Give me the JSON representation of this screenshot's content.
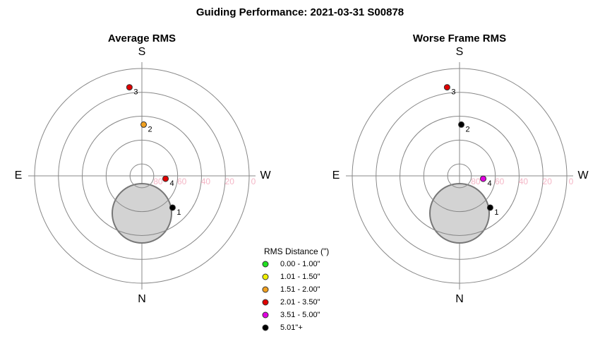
{
  "title": "Guiding Performance: 2021-03-31 S00878",
  "chart_data": [
    {
      "type": "polar",
      "title": "Average RMS",
      "compass": [
        {
          "label": "S",
          "az": 180
        },
        {
          "label": "W",
          "az": 270
        },
        {
          "label": "N",
          "az": 0
        },
        {
          "label": "E",
          "az": 90
        }
      ],
      "rlim": [
        90,
        0
      ],
      "rticks": [
        80,
        60,
        40,
        20,
        0
      ],
      "points": [
        {
          "label": "1",
          "az": 316,
          "alt": 53,
          "color": "#000000"
        },
        {
          "label": "2",
          "az": 182,
          "alt": 47,
          "color": "#f0a020"
        },
        {
          "label": "3",
          "az": 172,
          "alt": 15,
          "color": "#e00000"
        },
        {
          "label": "4",
          "az": 277,
          "alt": 70,
          "color": "#e00000"
        }
      ]
    },
    {
      "type": "polar",
      "title": "Worse Frame RMS",
      "compass": [
        {
          "label": "S",
          "az": 180
        },
        {
          "label": "W",
          "az": 270
        },
        {
          "label": "N",
          "az": 0
        },
        {
          "label": "E",
          "az": 90
        }
      ],
      "rlim": [
        90,
        0
      ],
      "rticks": [
        80,
        60,
        40,
        20,
        0
      ],
      "points": [
        {
          "label": "1",
          "az": 316,
          "alt": 53,
          "color": "#000000"
        },
        {
          "label": "2",
          "az": 182,
          "alt": 47,
          "color": "#000000"
        },
        {
          "label": "3",
          "az": 172,
          "alt": 15,
          "color": "#e00000"
        },
        {
          "label": "4",
          "az": 277,
          "alt": 70,
          "color": "#e000e0"
        }
      ]
    }
  ],
  "legend": {
    "title": "RMS Distance (\")",
    "items": [
      {
        "label": "0.00 - 1.00\"",
        "color": "#20e020"
      },
      {
        "label": "1.01 - 1.50\"",
        "color": "#f0f000"
      },
      {
        "label": "1.51 - 2.00\"",
        "color": "#f0a020"
      },
      {
        "label": "2.01 - 3.50\"",
        "color": "#e00000"
      },
      {
        "label": "3.51 - 5.00\"",
        "color": "#e000e0"
      },
      {
        "label": "5.01\"+",
        "color": "#000000"
      }
    ]
  }
}
